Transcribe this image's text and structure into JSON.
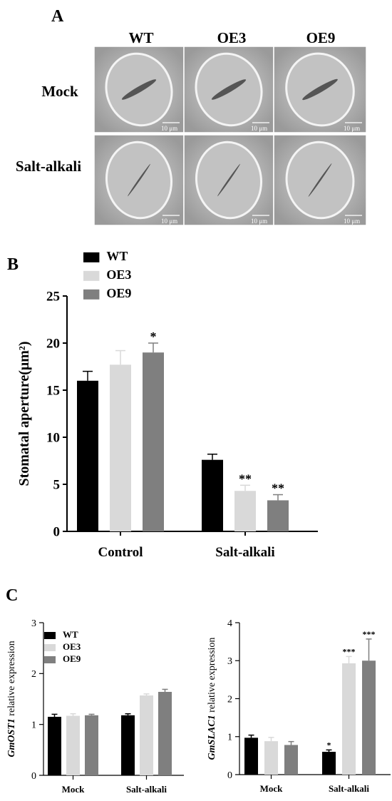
{
  "panel_a": {
    "letter": "A",
    "columns": [
      "WT",
      "OE3",
      "OE9"
    ],
    "rows": [
      "Mock",
      "Salt-alkali"
    ],
    "scale_bar_label": "10 μm"
  },
  "panel_b": {
    "letter": "B"
  },
  "panel_c": {
    "letter": "C"
  },
  "colors": {
    "WT": "#000000",
    "OE3": "#d9d9d9",
    "OE9": "#7f7f7f"
  },
  "chart_data": [
    {
      "id": "B",
      "type": "bar",
      "categories": [
        "Control",
        "Salt-alkali"
      ],
      "ylabel": "Stomatal aperture(μm²)",
      "ylim": [
        0,
        25
      ],
      "yticks": [
        0,
        5,
        10,
        15,
        20,
        25
      ],
      "legend": "top-left",
      "series": [
        {
          "name": "WT",
          "values": [
            16.0,
            7.6
          ],
          "errors": [
            1.0,
            0.6
          ],
          "sig": [
            "",
            ""
          ]
        },
        {
          "name": "OE3",
          "values": [
            17.7,
            4.3
          ],
          "errors": [
            1.5,
            0.6
          ],
          "sig": [
            "",
            "**"
          ]
        },
        {
          "name": "OE9",
          "values": [
            19.0,
            3.3
          ],
          "errors": [
            1.0,
            0.6
          ],
          "sig": [
            "*",
            "**"
          ]
        }
      ]
    },
    {
      "id": "C-left",
      "type": "bar",
      "categories": [
        "Mock",
        "Salt-alkali"
      ],
      "ylabel": "GmOST1 relative expression",
      "ylim": [
        0,
        3
      ],
      "yticks": [
        0,
        1,
        2,
        3
      ],
      "legend": "top-left",
      "series": [
        {
          "name": "WT",
          "values": [
            1.15,
            1.18
          ],
          "errors": [
            0.05,
            0.03
          ],
          "sig": [
            "",
            ""
          ]
        },
        {
          "name": "OE3",
          "values": [
            1.17,
            1.57
          ],
          "errors": [
            0.04,
            0.03
          ],
          "sig": [
            "",
            ""
          ]
        },
        {
          "name": "OE9",
          "values": [
            1.18,
            1.64
          ],
          "errors": [
            0.02,
            0.05
          ],
          "sig": [
            "",
            ""
          ]
        }
      ]
    },
    {
      "id": "C-right",
      "type": "bar",
      "categories": [
        "Mock",
        "Salt-alkali"
      ],
      "ylabel": "GmSLAC1 relative expression",
      "ylim": [
        0,
        4
      ],
      "yticks": [
        0,
        1,
        2,
        3,
        4
      ],
      "series": [
        {
          "name": "WT",
          "values": [
            0.97,
            0.6
          ],
          "errors": [
            0.07,
            0.05
          ],
          "sig": [
            "",
            "*"
          ]
        },
        {
          "name": "OE3",
          "values": [
            0.88,
            2.93
          ],
          "errors": [
            0.1,
            0.18
          ],
          "sig": [
            "",
            "***"
          ]
        },
        {
          "name": "OE9",
          "values": [
            0.78,
            3.0
          ],
          "errors": [
            0.09,
            0.57
          ],
          "sig": [
            "",
            "***"
          ]
        }
      ]
    }
  ]
}
